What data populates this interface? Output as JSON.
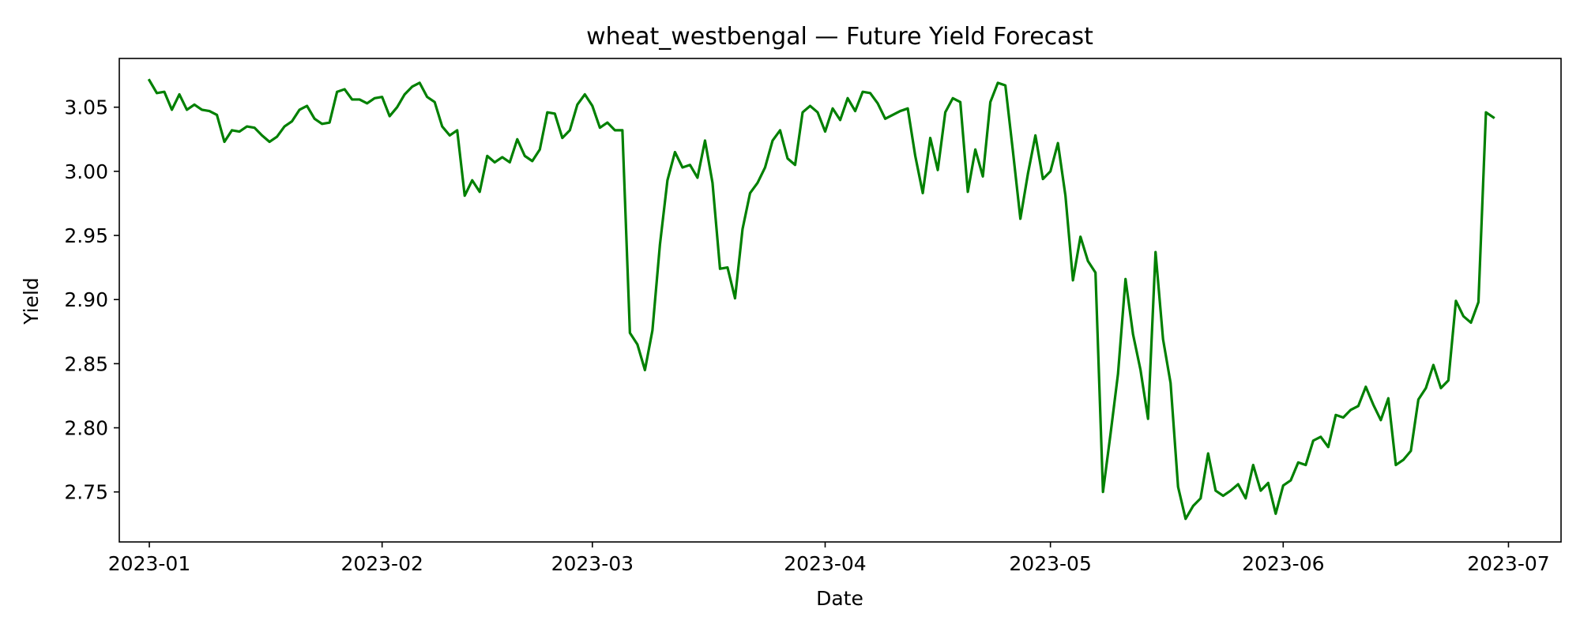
{
  "chart_data": {
    "type": "line",
    "title": "wheat_westbengal — Future Yield Forecast",
    "xlabel": "Date",
    "ylabel": "Yield",
    "start_date": "2023-01-01",
    "xlim": [
      "2022-12-28",
      "2023-07-08"
    ],
    "ylim": [
      2.711,
      3.088
    ],
    "x_ticks": [
      "2023-01-01",
      "2023-02-01",
      "2023-03-01",
      "2023-04-01",
      "2023-05-01",
      "2023-06-01",
      "2023-07-01"
    ],
    "x_tick_labels": [
      "2023-01",
      "2023-02",
      "2023-03",
      "2023-04",
      "2023-05",
      "2023-06",
      "2023-07"
    ],
    "y_ticks": [
      2.75,
      2.8,
      2.85,
      2.9,
      2.95,
      3.0,
      3.05
    ],
    "y_tick_labels": [
      "2.75",
      "2.80",
      "2.85",
      "2.90",
      "2.95",
      "3.00",
      "3.05"
    ],
    "grid": false,
    "legend": "none",
    "color": "#008000",
    "series": [
      {
        "values": [
          3.071,
          3.061,
          3.062,
          3.048,
          3.06,
          3.048,
          3.052,
          3.048,
          3.047,
          3.044,
          3.023,
          3.032,
          3.031,
          3.035,
          3.034,
          3.028,
          3.023,
          3.027,
          3.035,
          3.039,
          3.048,
          3.051,
          3.041,
          3.037,
          3.038,
          3.062,
          3.064,
          3.056,
          3.056,
          3.053,
          3.057,
          3.058,
          3.043,
          3.05,
          3.06,
          3.066,
          3.069,
          3.058,
          3.054,
          3.035,
          3.028,
          3.032,
          2.981,
          2.993,
          2.984,
          3.012,
          3.007,
          3.011,
          3.007,
          3.025,
          3.012,
          3.008,
          3.017,
          3.046,
          3.045,
          3.026,
          3.032,
          3.052,
          3.06,
          3.051,
          3.034,
          3.038,
          3.032,
          3.032,
          2.874,
          2.865,
          2.845,
          2.876,
          2.943,
          2.993,
          3.015,
          3.003,
          3.005,
          2.995,
          3.024,
          2.991,
          2.924,
          2.925,
          2.901,
          2.955,
          2.983,
          2.991,
          3.003,
          3.024,
          3.032,
          3.01,
          3.005,
          3.046,
          3.051,
          3.046,
          3.031,
          3.049,
          3.04,
          3.057,
          3.047,
          3.062,
          3.061,
          3.053,
          3.041,
          3.044,
          3.047,
          3.049,
          3.012,
          2.983,
          3.026,
          3.001,
          3.046,
          3.057,
          3.054,
          2.984,
          3.017,
          2.996,
          3.054,
          3.069,
          3.067,
          3.016,
          2.963,
          2.998,
          3.028,
          2.994,
          3.0,
          3.022,
          2.981,
          2.915,
          2.949,
          2.93,
          2.921,
          2.75,
          2.795,
          2.842,
          2.916,
          2.873,
          2.845,
          2.807,
          2.937,
          2.869,
          2.835,
          2.754,
          2.729,
          2.739,
          2.745,
          2.78,
          2.751,
          2.747,
          2.751,
          2.756,
          2.745,
          2.771,
          2.751,
          2.757,
          2.733,
          2.755,
          2.759,
          2.773,
          2.771,
          2.79,
          2.793,
          2.785,
          2.81,
          2.808,
          2.814,
          2.817,
          2.832,
          2.818,
          2.806,
          2.823,
          2.771,
          2.775,
          2.782,
          2.822,
          2.831,
          2.849,
          2.831,
          2.837,
          2.899,
          2.887,
          2.882,
          2.898,
          3.046,
          3.042
        ]
      }
    ]
  }
}
